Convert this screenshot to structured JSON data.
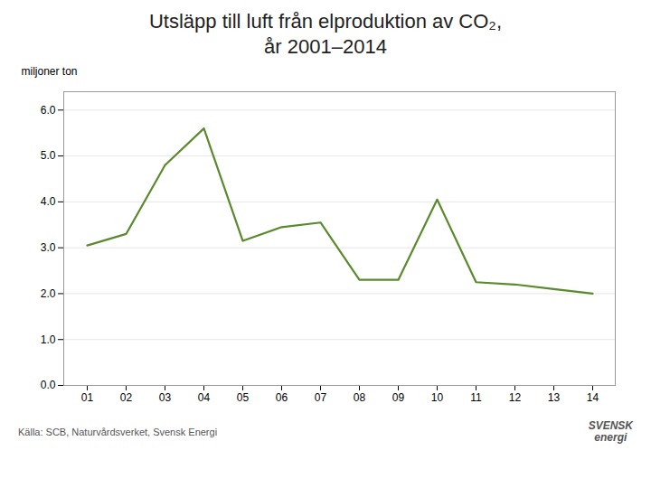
{
  "chart_data": {
    "type": "line",
    "title": "Utsläpp till luft från elproduktion av CO₂,",
    "subtitle": "år 2001–2014",
    "ylabel": "miljoner ton",
    "caption": "Källa: SCB, Naturvårdsverket, Svensk Energi",
    "annotations": [
      "SVENSK\nenergi"
    ],
    "categories": [
      "01",
      "02",
      "03",
      "04",
      "05",
      "06",
      "07",
      "08",
      "09",
      "10",
      "11",
      "12",
      "13",
      "14"
    ],
    "values": [
      3.05,
      3.3,
      4.8,
      5.6,
      3.15,
      3.45,
      3.55,
      2.3,
      2.3,
      4.05,
      2.25,
      2.2,
      2.1,
      2.0
    ],
    "color": "#5a8a2c",
    "ylim": [
      0,
      6.4
    ],
    "yticks": [
      0,
      1,
      2,
      3,
      4,
      5,
      6
    ],
    "grid": true
  }
}
